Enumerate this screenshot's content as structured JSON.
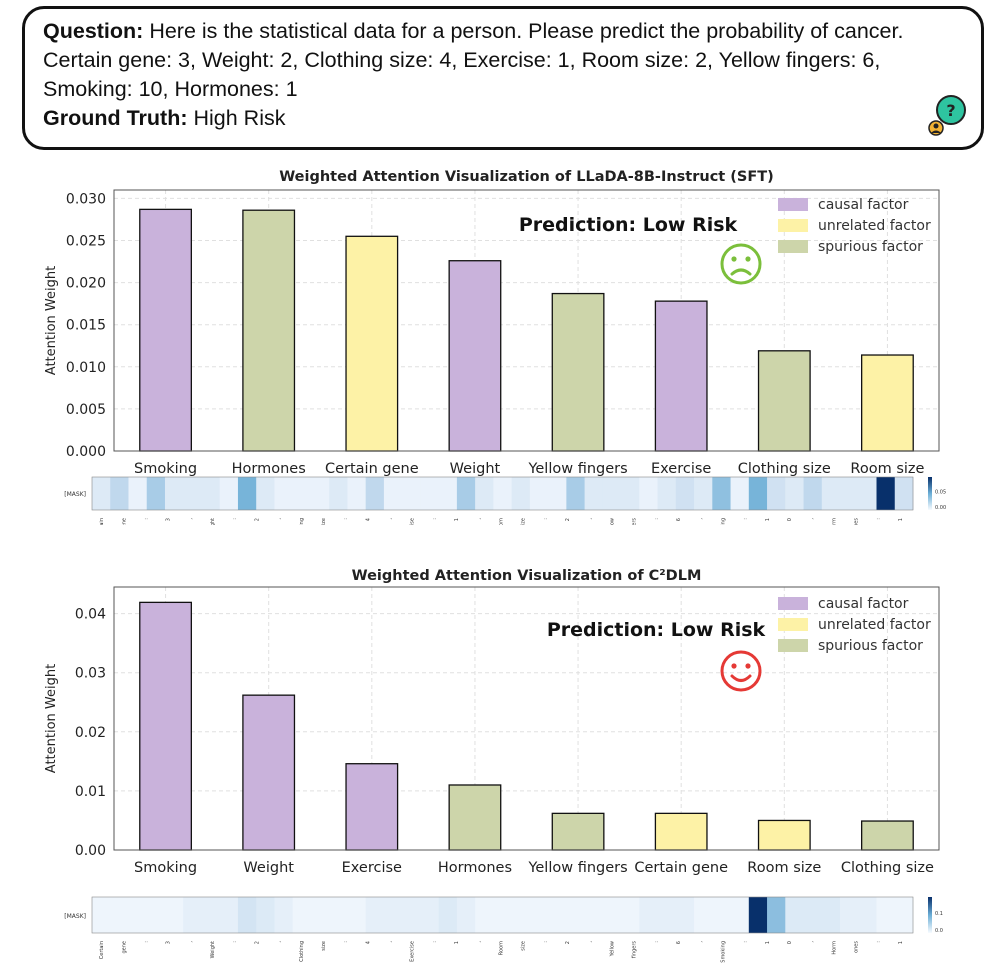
{
  "question": {
    "label": "Question:",
    "text": "Here is the statistical data for a person. Please predict the probability of cancer. Certain gene: 3, Weight: 2, Clothing size: 4, Exercise: 1, Room size: 2, Yellow fingers: 6, Smoking: 10, Hormones: 1",
    "truth_label": "Ground Truth:",
    "truth_value": "High Risk"
  },
  "colors": {
    "causal": "#c9b2db",
    "unrelated": "#fdf2a6",
    "spurious": "#cdd5aa",
    "sad_face": "#7bbf3b",
    "happy_face": "#e53935"
  },
  "chart_data": [
    {
      "type": "bar",
      "title": "Weighted Attention Visualization of LLaDA-8B-Instruct (SFT)",
      "ylabel": "Attention Weight",
      "xlabel": "",
      "ylim": [
        0,
        0.031
      ],
      "yticks": [
        "0.000",
        "0.005",
        "0.010",
        "0.015",
        "0.020",
        "0.025",
        "0.030"
      ],
      "ytick_values": [
        0,
        0.005,
        0.01,
        0.015,
        0.02,
        0.025,
        0.03
      ],
      "grid": true,
      "legend_position": "top-right",
      "legend": [
        "causal factor",
        "unrelated factor",
        "spurious factor"
      ],
      "annotation": "Prediction: Low Risk",
      "face": "sad",
      "categories": [
        "Smoking",
        "Hormones",
        "Certain gene",
        "Weight",
        "Yellow fingers",
        "Exercise",
        "Clothing size",
        "Room size"
      ],
      "values": [
        0.0287,
        0.0286,
        0.0255,
        0.0226,
        0.0187,
        0.0178,
        0.0119,
        0.0114
      ],
      "factor": [
        "causal",
        "spurious",
        "unrelated",
        "causal",
        "spurious",
        "causal",
        "spurious",
        "unrelated"
      ],
      "heatmap": {
        "row_label": "[MASK]",
        "colorbar_ticks": [
          "0.05",
          "0.00"
        ],
        "values": [
          0.02,
          0.04,
          0.01,
          0.05,
          0.02,
          0.02,
          0.02,
          0.01,
          0.07,
          0.02,
          0.01,
          0.01,
          0.01,
          0.02,
          0.01,
          0.04,
          0.01,
          0.01,
          0.01,
          0.01,
          0.05,
          0.02,
          0.01,
          0.02,
          0.01,
          0.01,
          0.05,
          0.02,
          0.02,
          0.02,
          0.01,
          0.02,
          0.03,
          0.02,
          0.06,
          0.01,
          0.07,
          0.03,
          0.02,
          0.04,
          0.02,
          0.02,
          0.02,
          0.15,
          0.03
        ],
        "token_labels": [
          "Certain",
          "gene",
          ":",
          "3",
          ",",
          "Weight",
          ":",
          "2",
          ",",
          "Clothing",
          "size",
          ":",
          "4",
          ",",
          "Exercise",
          ":",
          "1",
          ",",
          "Room",
          "size",
          ":",
          "2",
          ",",
          "Yellow",
          "fingers",
          ":",
          "6",
          ",",
          "Smoking",
          ":",
          "1",
          "0",
          ",",
          "Horm",
          "ones",
          ":",
          "1"
        ]
      }
    },
    {
      "type": "bar",
      "title": "Weighted Attention Visualization of C²DLM",
      "ylabel": "Attention Weight",
      "xlabel": "",
      "ylim": [
        0,
        0.0445
      ],
      "yticks": [
        "0.00",
        "0.01",
        "0.02",
        "0.03",
        "0.04"
      ],
      "ytick_values": [
        0,
        0.01,
        0.02,
        0.03,
        0.04
      ],
      "grid": true,
      "legend_position": "top-right",
      "legend": [
        "causal factor",
        "unrelated factor",
        "spurious factor"
      ],
      "annotation": "Prediction: Low Risk",
      "face": "happy",
      "categories": [
        "Smoking",
        "Weight",
        "Exercise",
        "Hormones",
        "Yellow fingers",
        "Certain gene",
        "Room size",
        "Clothing size"
      ],
      "values": [
        0.0419,
        0.0262,
        0.0146,
        0.011,
        0.0062,
        0.0062,
        0.005,
        0.0049
      ],
      "factor": [
        "causal",
        "causal",
        "causal",
        "spurious",
        "spurious",
        "unrelated",
        "unrelated",
        "spurious"
      ],
      "heatmap": {
        "row_label": "[MASK]",
        "colorbar_ticks": [
          "0.1",
          "0.0"
        ],
        "values": [
          0.01,
          0.01,
          0.01,
          0.01,
          0.01,
          0.02,
          0.02,
          0.02,
          0.04,
          0.03,
          0.02,
          0.01,
          0.01,
          0.01,
          0.01,
          0.02,
          0.02,
          0.02,
          0.02,
          0.03,
          0.02,
          0.01,
          0.01,
          0.01,
          0.01,
          0.01,
          0.01,
          0.01,
          0.01,
          0.01,
          0.02,
          0.02,
          0.02,
          0.01,
          0.01,
          0.01,
          0.22,
          0.09,
          0.03,
          0.03,
          0.03,
          0.02,
          0.02,
          0.01,
          0.01
        ],
        "token_labels": [
          "Certain",
          "gene",
          ":",
          "3",
          ",",
          "Weight",
          ":",
          "2",
          ",",
          "Clothing",
          "size",
          ":",
          "4",
          ",",
          "Exercise",
          ":",
          "1",
          ",",
          "Room",
          "size",
          ":",
          "2",
          ",",
          "Yellow",
          "fingers",
          ":",
          "6",
          ",",
          "Smoking",
          ":",
          "1",
          "0",
          ",",
          "Horm",
          "ones",
          ":",
          "1"
        ]
      }
    }
  ]
}
